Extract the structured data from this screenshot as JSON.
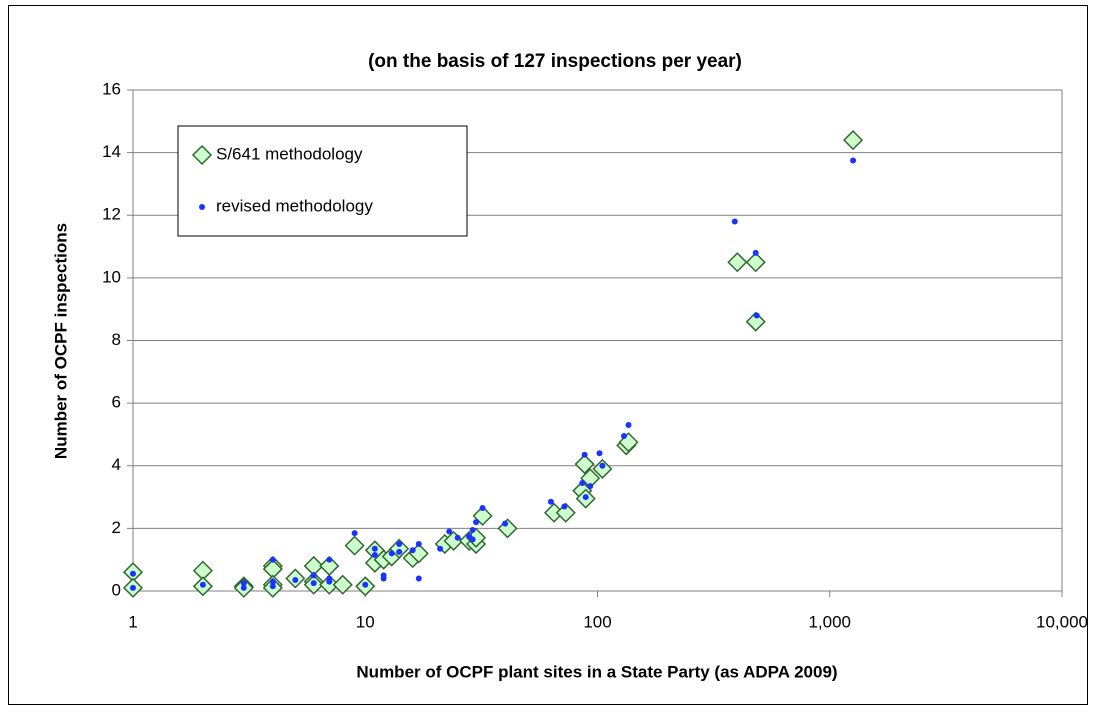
{
  "chart_data": {
    "type": "scatter",
    "title": "(on the basis of 127 inspections per year)",
    "x_label": "Number of OCPF plant sites in a State Party (as ADPA 2009)",
    "y_label": "Number of OCPF inspections",
    "x_scale": "log",
    "grid": true,
    "legend": "top-left",
    "xlim": [
      1,
      10000
    ],
    "xticks": [
      1,
      10,
      100,
      {
        "value": 1000,
        "label": "1,000"
      },
      {
        "value": 10000,
        "label": "10,000"
      }
    ],
    "ylim": [
      0,
      16
    ],
    "yticks": [
      0,
      2,
      4,
      6,
      8,
      10,
      12,
      14,
      16
    ],
    "series": [
      {
        "name": "S/641 methodology",
        "color": "#ccffcc",
        "stroke": "#336633",
        "marker": "diamond",
        "x": [
          1,
          1,
          2,
          2,
          3,
          3,
          4,
          4,
          4,
          4,
          5,
          6,
          6,
          6,
          7,
          7,
          8,
          9,
          10,
          11,
          11,
          12,
          13,
          14,
          16,
          17,
          22,
          24,
          28,
          30,
          30,
          32,
          41,
          65,
          73,
          86,
          88,
          89,
          93,
          105,
          133,
          136,
          400,
          480,
          480,
          1260
        ],
        "values": [
          0.6,
          0.1,
          0.65,
          0.15,
          0.15,
          0.1,
          0.8,
          0.7,
          0.2,
          0.1,
          0.4,
          0.8,
          0.3,
          0.2,
          0.8,
          0.2,
          0.2,
          1.45,
          0.15,
          1.3,
          0.9,
          1.0,
          1.1,
          1.35,
          1.05,
          1.2,
          1.5,
          1.6,
          1.6,
          1.5,
          1.7,
          2.4,
          2.0,
          2.5,
          2.5,
          3.2,
          4.05,
          2.95,
          3.6,
          3.9,
          4.65,
          4.75,
          10.5,
          10.5,
          8.6,
          14.4
        ]
      },
      {
        "name": "revised methodology",
        "color": "#1a33ff",
        "marker": "dot",
        "x": [
          1,
          1,
          2,
          3,
          3,
          4,
          4,
          4,
          5,
          6,
          6,
          7,
          7,
          7,
          9,
          10,
          11,
          11,
          12,
          12,
          13,
          14,
          14,
          16,
          17,
          17,
          21,
          23,
          25,
          28,
          29,
          29,
          30,
          32,
          40,
          63,
          72,
          86,
          88,
          89,
          93,
          102,
          105,
          130,
          136,
          390,
          480,
          485,
          1260
        ],
        "values": [
          0.1,
          0.55,
          0.2,
          0.25,
          0.1,
          1.0,
          0.3,
          0.15,
          0.35,
          0.5,
          0.25,
          1.0,
          0.3,
          0.4,
          1.85,
          0.2,
          1.35,
          1.15,
          0.5,
          0.4,
          1.2,
          1.5,
          1.25,
          1.3,
          1.5,
          0.4,
          1.35,
          1.9,
          1.7,
          1.75,
          1.95,
          1.65,
          2.2,
          2.65,
          2.15,
          2.85,
          2.7,
          3.45,
          4.35,
          3.0,
          3.35,
          4.4,
          4.0,
          4.95,
          5.3,
          11.8,
          10.8,
          8.8,
          13.75
        ]
      }
    ]
  }
}
